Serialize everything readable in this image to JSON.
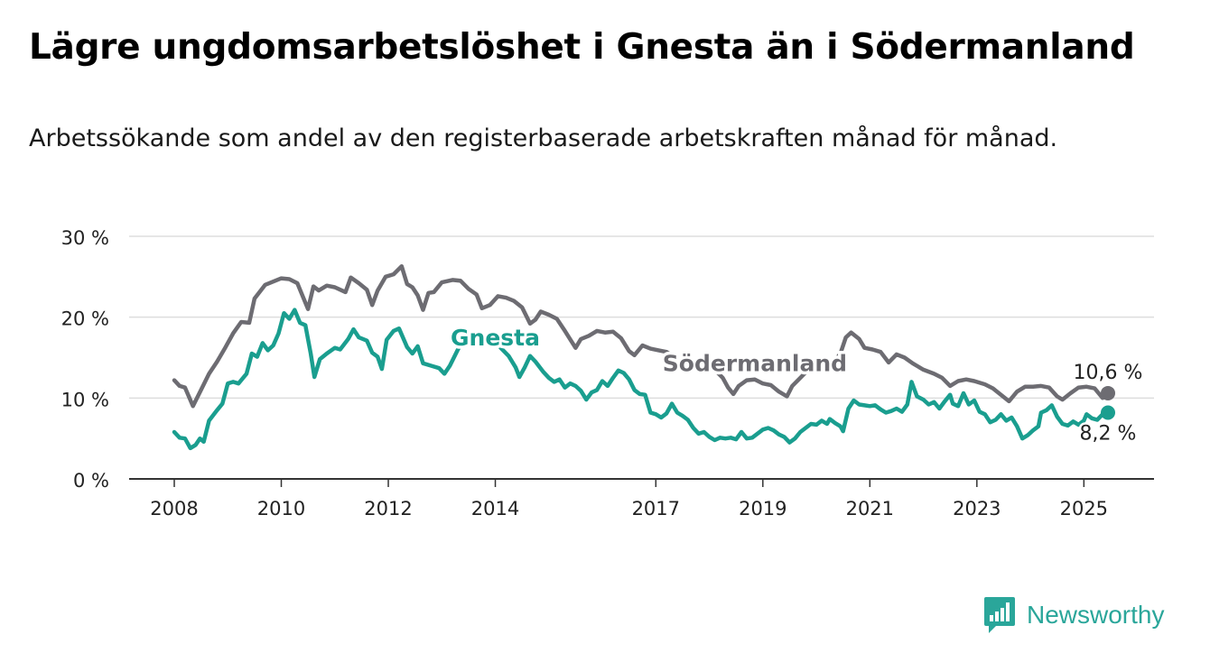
{
  "title": "Lägre ungdomsarbetslöshet i Gnesta än i Södermanland",
  "subtitle": "Arbetssökande som andel av den registerbaserade arbetskraften månad för månad.",
  "brand": {
    "name": "Newsworthy",
    "icon": "newsworthy-chart-bubble-icon"
  },
  "colors": {
    "gnesta": "#1a9e8f",
    "sodermanland": "#6d6c72",
    "grid": "#dddddd",
    "axis": "#333333",
    "brand": "#2aa69a"
  },
  "chart_data": {
    "type": "line",
    "ylim": [
      0,
      30
    ],
    "y_ticks": [
      0,
      10,
      20,
      30
    ],
    "y_tick_labels": [
      "0 %",
      "10 %",
      "20 %",
      "30 %"
    ],
    "x_range": [
      2008,
      2025.45
    ],
    "x_ticks": [
      2008,
      2010,
      2012,
      2014,
      2017,
      2019,
      2021,
      2023,
      2025
    ],
    "x_tick_labels": [
      "2008",
      "2010",
      "2012",
      "2014",
      "2017",
      "2019",
      "2021",
      "2023",
      "2025"
    ],
    "grid": "horizontal",
    "series": [
      {
        "name": "Södermanland",
        "color": "#6d6c72",
        "last_label": "10,6 %",
        "points": [
          [
            2008.0,
            12.2
          ],
          [
            2008.1,
            11.5
          ],
          [
            2008.2,
            11.3
          ],
          [
            2008.35,
            9.0
          ],
          [
            2008.5,
            11.0
          ],
          [
            2008.65,
            13.0
          ],
          [
            2008.8,
            14.5
          ],
          [
            2008.95,
            16.2
          ],
          [
            2009.1,
            18.0
          ],
          [
            2009.25,
            19.4
          ],
          [
            2009.4,
            19.3
          ],
          [
            2009.5,
            22.3
          ],
          [
            2009.7,
            24.0
          ],
          [
            2009.85,
            24.4
          ],
          [
            2010.0,
            24.8
          ],
          [
            2010.15,
            24.7
          ],
          [
            2010.3,
            24.2
          ],
          [
            2010.5,
            21.0
          ],
          [
            2010.6,
            23.8
          ],
          [
            2010.7,
            23.3
          ],
          [
            2010.85,
            23.9
          ],
          [
            2011.0,
            23.7
          ],
          [
            2011.2,
            23.1
          ],
          [
            2011.3,
            24.9
          ],
          [
            2011.45,
            24.2
          ],
          [
            2011.6,
            23.4
          ],
          [
            2011.7,
            21.5
          ],
          [
            2011.8,
            23.3
          ],
          [
            2011.95,
            25.0
          ],
          [
            2012.1,
            25.3
          ],
          [
            2012.25,
            26.3
          ],
          [
            2012.35,
            24.1
          ],
          [
            2012.45,
            23.7
          ],
          [
            2012.55,
            22.7
          ],
          [
            2012.65,
            20.9
          ],
          [
            2012.75,
            23.0
          ],
          [
            2012.85,
            23.1
          ],
          [
            2013.0,
            24.3
          ],
          [
            2013.2,
            24.6
          ],
          [
            2013.35,
            24.5
          ],
          [
            2013.5,
            23.5
          ],
          [
            2013.65,
            22.8
          ],
          [
            2013.75,
            21.1
          ],
          [
            2013.9,
            21.5
          ],
          [
            2014.05,
            22.6
          ],
          [
            2014.2,
            22.4
          ],
          [
            2014.35,
            22.0
          ],
          [
            2014.5,
            21.2
          ],
          [
            2014.65,
            19.2
          ],
          [
            2014.75,
            19.7
          ],
          [
            2014.85,
            20.7
          ],
          [
            2015.0,
            20.3
          ],
          [
            2015.15,
            19.8
          ],
          [
            2015.3,
            18.3
          ],
          [
            2015.5,
            16.2
          ],
          [
            2015.6,
            17.3
          ],
          [
            2015.75,
            17.7
          ],
          [
            2015.9,
            18.3
          ],
          [
            2016.05,
            18.1
          ],
          [
            2016.2,
            18.2
          ],
          [
            2016.35,
            17.4
          ],
          [
            2016.5,
            15.8
          ],
          [
            2016.6,
            15.3
          ],
          [
            2016.75,
            16.5
          ],
          [
            2016.9,
            16.1
          ],
          [
            2017.05,
            15.9
          ],
          [
            2017.2,
            15.7
          ],
          [
            2017.35,
            15.1
          ],
          [
            2017.5,
            13.6
          ],
          [
            2017.65,
            13.9
          ],
          [
            2017.8,
            14.5
          ],
          [
            2017.95,
            14.2
          ],
          [
            2018.1,
            13.5
          ],
          [
            2018.25,
            12.5
          ],
          [
            2018.35,
            11.3
          ],
          [
            2018.45,
            10.5
          ],
          [
            2018.55,
            11.5
          ],
          [
            2018.7,
            12.2
          ],
          [
            2018.85,
            12.3
          ],
          [
            2019.0,
            11.8
          ],
          [
            2019.15,
            11.6
          ],
          [
            2019.3,
            10.8
          ],
          [
            2019.45,
            10.2
          ],
          [
            2019.55,
            11.5
          ],
          [
            2019.7,
            12.5
          ],
          [
            2019.85,
            13.5
          ],
          [
            2020.0,
            14.0
          ],
          [
            2020.15,
            14.5
          ],
          [
            2020.3,
            14.2
          ],
          [
            2020.45,
            15.5
          ],
          [
            2020.55,
            17.5
          ],
          [
            2020.65,
            18.1
          ],
          [
            2020.8,
            17.3
          ],
          [
            2020.9,
            16.2
          ],
          [
            2021.05,
            16.0
          ],
          [
            2021.2,
            15.7
          ],
          [
            2021.35,
            14.4
          ],
          [
            2021.5,
            15.4
          ],
          [
            2021.65,
            15.0
          ],
          [
            2021.8,
            14.3
          ],
          [
            2022.0,
            13.5
          ],
          [
            2022.2,
            13.0
          ],
          [
            2022.35,
            12.5
          ],
          [
            2022.5,
            11.5
          ],
          [
            2022.65,
            12.1
          ],
          [
            2022.8,
            12.3
          ],
          [
            2022.95,
            12.1
          ],
          [
            2023.15,
            11.7
          ],
          [
            2023.3,
            11.2
          ],
          [
            2023.45,
            10.4
          ],
          [
            2023.6,
            9.6
          ],
          [
            2023.75,
            10.8
          ],
          [
            2023.9,
            11.4
          ],
          [
            2024.05,
            11.4
          ],
          [
            2024.2,
            11.5
          ],
          [
            2024.35,
            11.3
          ],
          [
            2024.5,
            10.2
          ],
          [
            2024.6,
            9.8
          ],
          [
            2024.75,
            10.6
          ],
          [
            2024.9,
            11.3
          ],
          [
            2025.05,
            11.4
          ],
          [
            2025.2,
            11.2
          ],
          [
            2025.35,
            10.0
          ],
          [
            2025.45,
            10.6
          ]
        ]
      },
      {
        "name": "Gnesta",
        "color": "#1a9e8f",
        "last_label": "8,2 %",
        "points": [
          [
            2008.0,
            5.8
          ],
          [
            2008.1,
            5.1
          ],
          [
            2008.2,
            5.0
          ],
          [
            2008.3,
            3.8
          ],
          [
            2008.4,
            4.2
          ],
          [
            2008.48,
            5.0
          ],
          [
            2008.55,
            4.6
          ],
          [
            2008.65,
            7.2
          ],
          [
            2008.8,
            8.5
          ],
          [
            2008.9,
            9.3
          ],
          [
            2009.0,
            11.8
          ],
          [
            2009.1,
            12.0
          ],
          [
            2009.2,
            11.8
          ],
          [
            2009.35,
            13.0
          ],
          [
            2009.45,
            15.5
          ],
          [
            2009.55,
            15.1
          ],
          [
            2009.65,
            16.8
          ],
          [
            2009.75,
            15.9
          ],
          [
            2009.85,
            16.5
          ],
          [
            2009.95,
            18.0
          ],
          [
            2010.05,
            20.5
          ],
          [
            2010.15,
            19.8
          ],
          [
            2010.25,
            20.9
          ],
          [
            2010.35,
            19.3
          ],
          [
            2010.45,
            19.0
          ],
          [
            2010.55,
            15.5
          ],
          [
            2010.62,
            12.6
          ],
          [
            2010.72,
            14.8
          ],
          [
            2010.85,
            15.5
          ],
          [
            2011.0,
            16.2
          ],
          [
            2011.1,
            16.0
          ],
          [
            2011.25,
            17.3
          ],
          [
            2011.35,
            18.5
          ],
          [
            2011.45,
            17.5
          ],
          [
            2011.6,
            17.1
          ],
          [
            2011.7,
            15.6
          ],
          [
            2011.8,
            15.1
          ],
          [
            2011.88,
            13.6
          ],
          [
            2011.97,
            17.2
          ],
          [
            2012.1,
            18.3
          ],
          [
            2012.2,
            18.6
          ],
          [
            2012.35,
            16.3
          ],
          [
            2012.45,
            15.5
          ],
          [
            2012.55,
            16.4
          ],
          [
            2012.65,
            14.3
          ],
          [
            2012.8,
            14.0
          ],
          [
            2012.95,
            13.7
          ],
          [
            2013.05,
            13.0
          ],
          [
            2013.15,
            14.0
          ],
          [
            2013.3,
            16.0
          ],
          [
            2013.45,
            17.6
          ],
          [
            2013.6,
            16.8
          ],
          [
            2013.75,
            17.3
          ],
          [
            2013.9,
            18.1
          ],
          [
            2014.0,
            17.5
          ],
          [
            2014.1,
            16.2
          ],
          [
            2014.25,
            15.2
          ],
          [
            2014.38,
            13.8
          ],
          [
            2014.45,
            12.6
          ],
          [
            2014.55,
            13.8
          ],
          [
            2014.65,
            15.2
          ],
          [
            2014.75,
            14.5
          ],
          [
            2014.9,
            13.2
          ],
          [
            2015.0,
            12.5
          ],
          [
            2015.1,
            12.0
          ],
          [
            2015.2,
            12.3
          ],
          [
            2015.3,
            11.3
          ],
          [
            2015.4,
            11.8
          ],
          [
            2015.5,
            11.5
          ],
          [
            2015.6,
            10.9
          ],
          [
            2015.7,
            9.8
          ],
          [
            2015.8,
            10.7
          ],
          [
            2015.9,
            11.0
          ],
          [
            2016.0,
            12.1
          ],
          [
            2016.1,
            11.5
          ],
          [
            2016.2,
            12.5
          ],
          [
            2016.3,
            13.4
          ],
          [
            2016.4,
            13.1
          ],
          [
            2016.5,
            12.3
          ],
          [
            2016.6,
            11.0
          ],
          [
            2016.7,
            10.5
          ],
          [
            2016.8,
            10.4
          ],
          [
            2016.9,
            8.2
          ],
          [
            2017.0,
            8.0
          ],
          [
            2017.1,
            7.6
          ],
          [
            2017.2,
            8.1
          ],
          [
            2017.3,
            9.3
          ],
          [
            2017.4,
            8.2
          ],
          [
            2017.5,
            7.8
          ],
          [
            2017.6,
            7.3
          ],
          [
            2017.7,
            6.3
          ],
          [
            2017.8,
            5.6
          ],
          [
            2017.9,
            5.8
          ],
          [
            2018.0,
            5.2
          ],
          [
            2018.1,
            4.8
          ],
          [
            2018.2,
            5.1
          ],
          [
            2018.3,
            5.0
          ],
          [
            2018.4,
            5.1
          ],
          [
            2018.5,
            4.9
          ],
          [
            2018.6,
            5.8
          ],
          [
            2018.7,
            5.0
          ],
          [
            2018.8,
            5.1
          ],
          [
            2018.9,
            5.6
          ],
          [
            2019.0,
            6.1
          ],
          [
            2019.1,
            6.3
          ],
          [
            2019.2,
            6.0
          ],
          [
            2019.3,
            5.5
          ],
          [
            2019.4,
            5.2
          ],
          [
            2019.5,
            4.5
          ],
          [
            2019.6,
            5.0
          ],
          [
            2019.7,
            5.8
          ],
          [
            2019.8,
            6.3
          ],
          [
            2019.9,
            6.8
          ],
          [
            2020.0,
            6.7
          ],
          [
            2020.1,
            7.2
          ],
          [
            2020.2,
            6.8
          ],
          [
            2020.25,
            7.4
          ],
          [
            2020.35,
            6.9
          ],
          [
            2020.45,
            6.5
          ],
          [
            2020.5,
            5.9
          ],
          [
            2020.6,
            8.7
          ],
          [
            2020.7,
            9.7
          ],
          [
            2020.8,
            9.2
          ],
          [
            2020.9,
            9.1
          ],
          [
            2021.0,
            9.0
          ],
          [
            2021.1,
            9.1
          ],
          [
            2021.2,
            8.6
          ],
          [
            2021.3,
            8.2
          ],
          [
            2021.4,
            8.4
          ],
          [
            2021.5,
            8.7
          ],
          [
            2021.6,
            8.3
          ],
          [
            2021.7,
            9.2
          ],
          [
            2021.78,
            12.0
          ],
          [
            2021.88,
            10.2
          ],
          [
            2022.0,
            9.8
          ],
          [
            2022.1,
            9.2
          ],
          [
            2022.2,
            9.5
          ],
          [
            2022.3,
            8.7
          ],
          [
            2022.4,
            9.6
          ],
          [
            2022.5,
            10.4
          ],
          [
            2022.55,
            9.3
          ],
          [
            2022.65,
            9.0
          ],
          [
            2022.75,
            10.6
          ],
          [
            2022.85,
            9.2
          ],
          [
            2022.95,
            9.7
          ],
          [
            2023.05,
            8.3
          ],
          [
            2023.15,
            8.0
          ],
          [
            2023.25,
            7.0
          ],
          [
            2023.35,
            7.3
          ],
          [
            2023.45,
            8.0
          ],
          [
            2023.55,
            7.2
          ],
          [
            2023.65,
            7.6
          ],
          [
            2023.75,
            6.5
          ],
          [
            2023.85,
            5.0
          ],
          [
            2023.95,
            5.4
          ],
          [
            2024.05,
            6.0
          ],
          [
            2024.15,
            6.5
          ],
          [
            2024.2,
            8.2
          ],
          [
            2024.3,
            8.5
          ],
          [
            2024.4,
            9.1
          ],
          [
            2024.5,
            7.7
          ],
          [
            2024.6,
            6.8
          ],
          [
            2024.7,
            6.6
          ],
          [
            2024.8,
            7.1
          ],
          [
            2024.9,
            6.7
          ],
          [
            2025.0,
            7.2
          ],
          [
            2025.05,
            8.0
          ],
          [
            2025.15,
            7.5
          ],
          [
            2025.25,
            7.3
          ],
          [
            2025.35,
            8.0
          ],
          [
            2025.45,
            8.2
          ]
        ]
      }
    ],
    "annotations": [
      {
        "text": "Gnesta",
        "series": "Gnesta",
        "x": 2014.0,
        "y": 16.5
      },
      {
        "text": "Södermanland",
        "series": "Södermanland",
        "x": 2018.85,
        "y": 13.3
      }
    ]
  }
}
